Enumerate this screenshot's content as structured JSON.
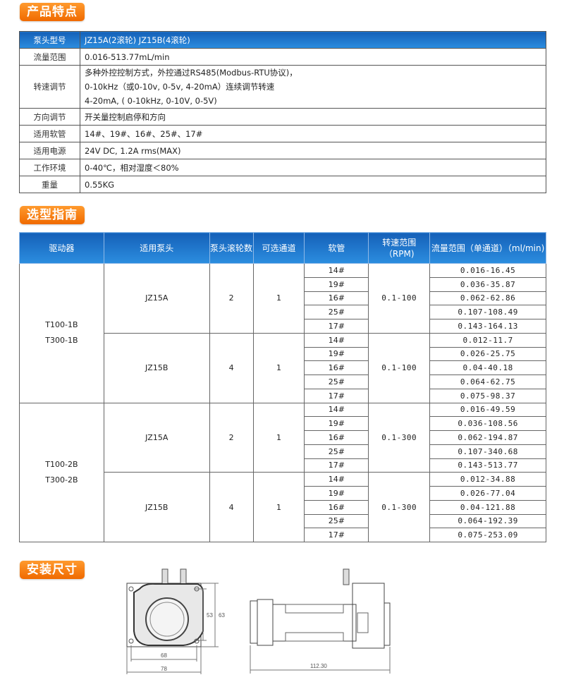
{
  "sections": {
    "features": "产品特点",
    "selection": "选型指南",
    "install": "安装尺寸"
  },
  "features": [
    {
      "label": "泵头型号",
      "lines": [
        "JZ15A(2滚轮) JZ15B(4滚轮)"
      ]
    },
    {
      "label": "流量范围",
      "lines": [
        "0.016-513.77mL/min"
      ]
    },
    {
      "label": "转速调节",
      "lines": [
        "多种外控控制方式，外控通过RS485(Modbus-RTU协议)，",
        " 0-10kHz（或0-10v, 0-5v, 4-20mA）连续调节转速",
        "4-20mA, ( 0-10kHz, 0-10V, 0-5V)"
      ]
    },
    {
      "label": "方向调节",
      "lines": [
        "开关量控制启停和方向"
      ]
    },
    {
      "label": "适用软管",
      "lines": [
        "14#、19#、16#、25#、17#"
      ]
    },
    {
      "label": "适用电源",
      "lines": [
        "24V DC, 1.2A rms(MAX)"
      ]
    },
    {
      "label": "工作环境",
      "lines": [
        "0-40℃，相对湿度＜80%"
      ]
    },
    {
      "label": "重量",
      "lines": [
        "0.55KG"
      ]
    }
  ],
  "selection": {
    "headers": [
      "驱动器",
      "适用泵头",
      "泵头滚轮数",
      "可选通道",
      "软管",
      "转速范围（RPM)",
      "流量范围（单通道）（ml/min)"
    ],
    "groups": [
      {
        "drivers": [
          "T100-1B",
          "T300-1B"
        ],
        "heads": [
          {
            "head": "JZ15A",
            "rollers": "2",
            "channels": "1",
            "rpm": "0.1-100",
            "tubes": [
              [
                "14#",
                "0.016-16.45"
              ],
              [
                "19#",
                "0.036-35.87"
              ],
              [
                "16#",
                "0.062-62.86"
              ],
              [
                "25#",
                "0.107-108.49"
              ],
              [
                "17#",
                "0.143-164.13"
              ]
            ]
          },
          {
            "head": "JZ15B",
            "rollers": "4",
            "channels": "1",
            "rpm": "0.1-100",
            "tubes": [
              [
                "14#",
                "0.012-11.7"
              ],
              [
                "19#",
                "0.026-25.75"
              ],
              [
                "16#",
                "0.04-40.18"
              ],
              [
                "25#",
                "0.064-62.75"
              ],
              [
                "17#",
                "0.075-98.37"
              ]
            ]
          }
        ]
      },
      {
        "drivers": [
          "T100-2B",
          "T300-2B"
        ],
        "heads": [
          {
            "head": "JZ15A",
            "rollers": "2",
            "channels": "1",
            "rpm": "0.1-300",
            "tubes": [
              [
                "14#",
                "0.016-49.59"
              ],
              [
                "19#",
                "0.036-108.56"
              ],
              [
                "16#",
                "0.062-194.87"
              ],
              [
                "25#",
                "0.107-340.68"
              ],
              [
                "17#",
                "0.143-513.77"
              ]
            ]
          },
          {
            "head": "JZ15B",
            "rollers": "4",
            "channels": "1",
            "rpm": "0.1-300",
            "tubes": [
              [
                "14#",
                "0.012-34.88"
              ],
              [
                "19#",
                "0.026-77.04"
              ],
              [
                "16#",
                "0.04-121.88"
              ],
              [
                "25#",
                "0.064-192.39"
              ],
              [
                "17#",
                "0.075-253.09"
              ]
            ]
          }
        ]
      }
    ]
  },
  "drawing": {
    "width_inner": "68",
    "width_outer": "78",
    "height_inner": "53",
    "height_outer": "63",
    "length": "112.30"
  },
  "colors": {
    "header_blue": "#1e76cc",
    "badge_orange": "#f57c10"
  }
}
